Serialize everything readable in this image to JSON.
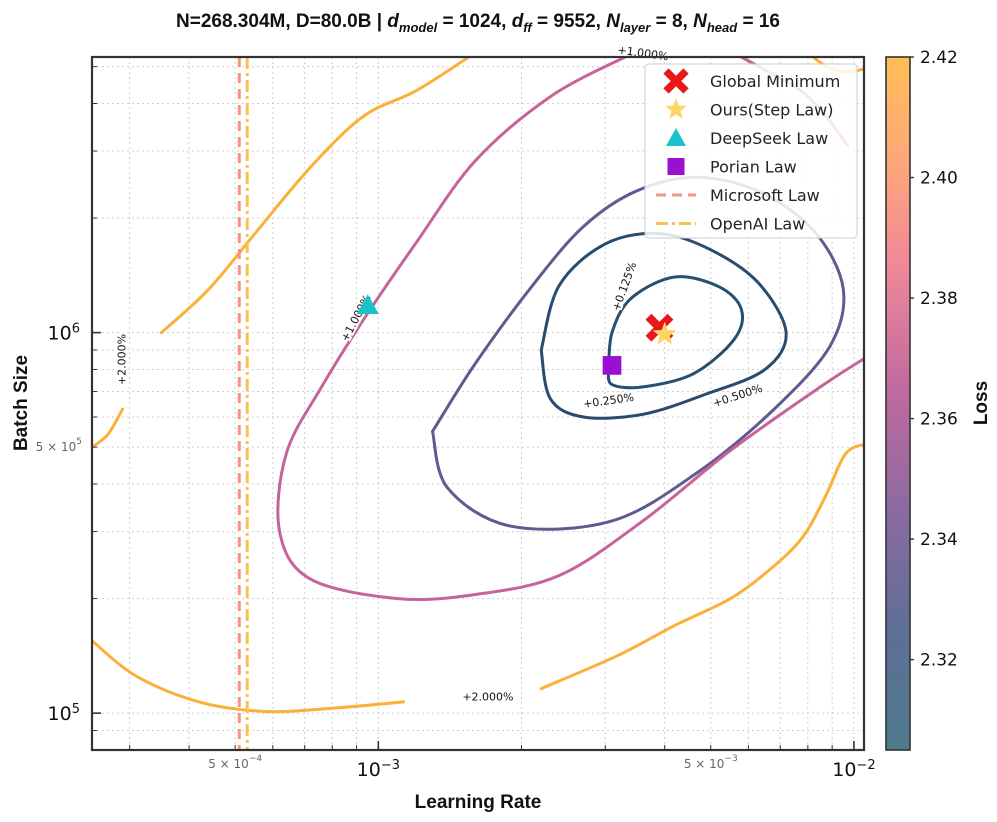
{
  "chart_data": {
    "type": "contour",
    "title_parts": {
      "main": "N=268.304M, D=80.0B | ",
      "dmodel_sym": "d",
      "dmodel_sub": "model",
      "dmodel_val": " = 1024, ",
      "dff_sym": "d",
      "dff_sub": "ff",
      "dff_val": " = 9552, ",
      "nlayer_sym": "N",
      "nlayer_sub": "layer",
      "nlayer_val": " = 8, ",
      "nhead_sym": "N",
      "nhead_sub": "head",
      "nhead_val": " = 16"
    },
    "xlabel": "Learning Rate",
    "ylabel": "Batch Size",
    "xscale": "log",
    "yscale": "log",
    "xlim": [
      0.00025,
      0.0105
    ],
    "ylim": [
      80000,
      5300000
    ],
    "x_major_ticks": [
      {
        "value": 0.001,
        "base": "10",
        "exp": "−3"
      },
      {
        "value": 0.01,
        "base": "10",
        "exp": "−2"
      }
    ],
    "x_minor_labeled": [
      {
        "value": 0.0005,
        "pre": "5 × 10",
        "exp": "−4"
      },
      {
        "value": 0.005,
        "pre": "5 × 10",
        "exp": "−3"
      }
    ],
    "y_major_ticks": [
      {
        "value": 100000,
        "base": "10",
        "exp": "5"
      },
      {
        "value": 1000000,
        "base": "10",
        "exp": "6"
      }
    ],
    "y_minor_labeled": [
      {
        "value": 500000,
        "pre": "5 × 10",
        "exp": "5"
      }
    ],
    "colorbar": {
      "label": "Loss",
      "range": [
        2.305,
        2.42
      ],
      "ticks": [
        "2.32",
        "2.34",
        "2.36",
        "2.38",
        "2.40",
        "2.42"
      ],
      "colors": [
        "#4e7a8c",
        "#5e6f96",
        "#8a6aa0",
        "#c06aa0",
        "#f08898",
        "#fea77a",
        "#ffbe55"
      ]
    },
    "contours": [
      {
        "label": "+0.125%",
        "color": "#255070",
        "points": [
          [
            0.00305,
            800000
          ],
          [
            0.0031,
            1000000
          ],
          [
            0.0034,
            1230000
          ],
          [
            0.0042,
            1400000
          ],
          [
            0.0052,
            1320000
          ],
          [
            0.0058,
            1150000
          ],
          [
            0.0056,
            960000
          ],
          [
            0.0046,
            780000
          ],
          [
            0.0036,
            720000
          ],
          [
            0.0031,
            730000
          ],
          [
            0.00305,
            800000
          ]
        ]
      },
      {
        "label": "+0.250%",
        "color": "#2a4c6c",
        "points": [
          [
            0.0022,
            900000
          ],
          [
            0.0024,
            1330000
          ],
          [
            0.003,
            1710000
          ],
          [
            0.0039,
            1820000
          ],
          [
            0.005,
            1650000
          ],
          [
            0.0063,
            1350000
          ],
          [
            0.0072,
            1000000
          ],
          [
            0.0065,
            800000
          ],
          [
            0.0049,
            690000
          ],
          [
            0.0036,
            610000
          ],
          [
            0.0027,
            600000
          ],
          [
            0.0023,
            670000
          ],
          [
            0.0022,
            900000
          ]
        ]
      },
      {
        "label": "+0.500%",
        "color": "#5f5a90",
        "points": [
          [
            0.0013,
            550000
          ],
          [
            0.0016,
            830000
          ],
          [
            0.0021,
            1320000
          ],
          [
            0.0027,
            1900000
          ],
          [
            0.0035,
            2360000
          ],
          [
            0.0047,
            2560000
          ],
          [
            0.0064,
            2330000
          ],
          [
            0.0083,
            1830000
          ],
          [
            0.0095,
            1300000
          ],
          [
            0.0089,
            920000
          ],
          [
            0.0068,
            630000
          ],
          [
            0.0047,
            430000
          ],
          [
            0.0031,
            320000
          ],
          [
            0.0019,
            310000
          ],
          [
            0.0014,
            390000
          ],
          [
            0.0013,
            550000
          ]
        ]
      },
      {
        "label": "+1.000%",
        "color": "#c6649a",
        "points": [
          [
            0.0106,
            860000
          ],
          [
            0.0085,
            720000
          ],
          [
            0.0055,
            490000
          ],
          [
            0.0036,
            320000
          ],
          [
            0.0024,
            230000
          ],
          [
            0.0016,
            205000
          ],
          [
            0.0011,
            200000
          ],
          [
            0.00072,
            225000
          ],
          [
            0.00062,
            300000
          ],
          [
            0.00064,
            480000
          ],
          [
            0.00076,
            720000
          ],
          [
            0.00093,
            1080000
          ],
          [
            0.0012,
            1720000
          ],
          [
            0.0016,
            2830000
          ],
          [
            0.0023,
            4170000
          ],
          [
            0.0033,
            5300000
          ]
        ]
      },
      {
        "label": "+1.000%",
        "color": "#c6649a",
        "points": [
          [
            0.0058,
            5300000
          ],
          [
            0.0065,
            4900000
          ],
          [
            0.0076,
            4400000
          ],
          [
            0.0086,
            3800000
          ],
          [
            0.0097,
            3100000
          ]
        ]
      },
      {
        "label": "+2.000%",
        "color": "#fbb03a",
        "points": [
          [
            0.00025,
            500000
          ],
          [
            0.00027,
            540000
          ],
          [
            0.00029,
            630000
          ]
        ]
      },
      {
        "label": "+2.000%",
        "color": "#fbb03a",
        "points": [
          [
            0.00035,
            1000000
          ],
          [
            0.00044,
            1300000
          ],
          [
            0.00055,
            1820000
          ],
          [
            0.00072,
            2720000
          ],
          [
            0.00093,
            3700000
          ],
          [
            0.0012,
            4320000
          ],
          [
            0.00155,
            5300000
          ]
        ]
      },
      {
        "label": "+2.000%",
        "color": "#fbb03a",
        "points": [
          [
            0.00025,
            155000
          ],
          [
            0.00031,
            125000
          ],
          [
            0.00042,
            107000
          ],
          [
            0.00058,
            101000
          ],
          [
            0.0008,
            103000
          ],
          [
            0.00113,
            107000
          ]
        ]
      },
      {
        "label": "+2.000%",
        "color": "#fbb03a",
        "points": [
          [
            0.0022,
            116000
          ],
          [
            0.0032,
            142000
          ],
          [
            0.0042,
            170000
          ],
          [
            0.0055,
            200000
          ],
          [
            0.0067,
            240000
          ],
          [
            0.0078,
            290000
          ],
          [
            0.0087,
            370000
          ],
          [
            0.0096,
            480000
          ],
          [
            0.0106,
            510000
          ]
        ]
      },
      {
        "label": "+2.000%",
        "color": "#fbb03a",
        "points": [
          [
            0.0082,
            5300000
          ],
          [
            0.0089,
            4950000
          ],
          [
            0.0098,
            4850000
          ],
          [
            0.0106,
            4950000
          ]
        ]
      }
    ],
    "contour_labels": [
      {
        "text": "+0.125%",
        "x": 0.0033,
        "y": 1320000,
        "angle": -70
      },
      {
        "text": "+0.250%",
        "x": 0.00305,
        "y": 660000,
        "angle": -8
      },
      {
        "text": "+0.500%",
        "x": 0.0057,
        "y": 680000,
        "angle": -18
      },
      {
        "text": "+1.000%",
        "x": 0.0009,
        "y": 1090000,
        "angle": -62
      },
      {
        "text": "+1.000%",
        "x": 0.0036,
        "y": 5400000,
        "angle": 8
      },
      {
        "text": "+2.000%",
        "x": 0.00029,
        "y": 850000,
        "angle": -90
      },
      {
        "text": "+2.000%",
        "x": 0.0017,
        "y": 110000,
        "angle": 0
      }
    ],
    "vlines": [
      {
        "name": "Microsoft Law",
        "x": 0.00051,
        "color": "#f7957e",
        "dash": "10,6"
      },
      {
        "name": "OpenAI Law",
        "x": 0.00053,
        "color": "#fbc04e",
        "dash": "12,4,3,4"
      }
    ],
    "markers": [
      {
        "name": "Global Minimum",
        "type": "x",
        "x": 0.0039,
        "y": 1030000,
        "color": "#e8171a"
      },
      {
        "name": "Ours(Step Law)",
        "type": "star",
        "x": 0.004,
        "y": 990000,
        "color": "#fbd565"
      },
      {
        "name": "DeepSeek Law",
        "type": "triangle",
        "x": 0.00095,
        "y": 1180000,
        "color": "#19c3c8"
      },
      {
        "name": "Porian Law",
        "type": "square",
        "x": 0.0031,
        "y": 820000,
        "color": "#9b0fd0"
      }
    ],
    "legend": {
      "position": "top-right",
      "entries": [
        "Global Minimum",
        "Ours(Step Law)",
        "DeepSeek Law",
        "Porian Law",
        "Microsoft Law",
        "OpenAI Law"
      ]
    }
  }
}
